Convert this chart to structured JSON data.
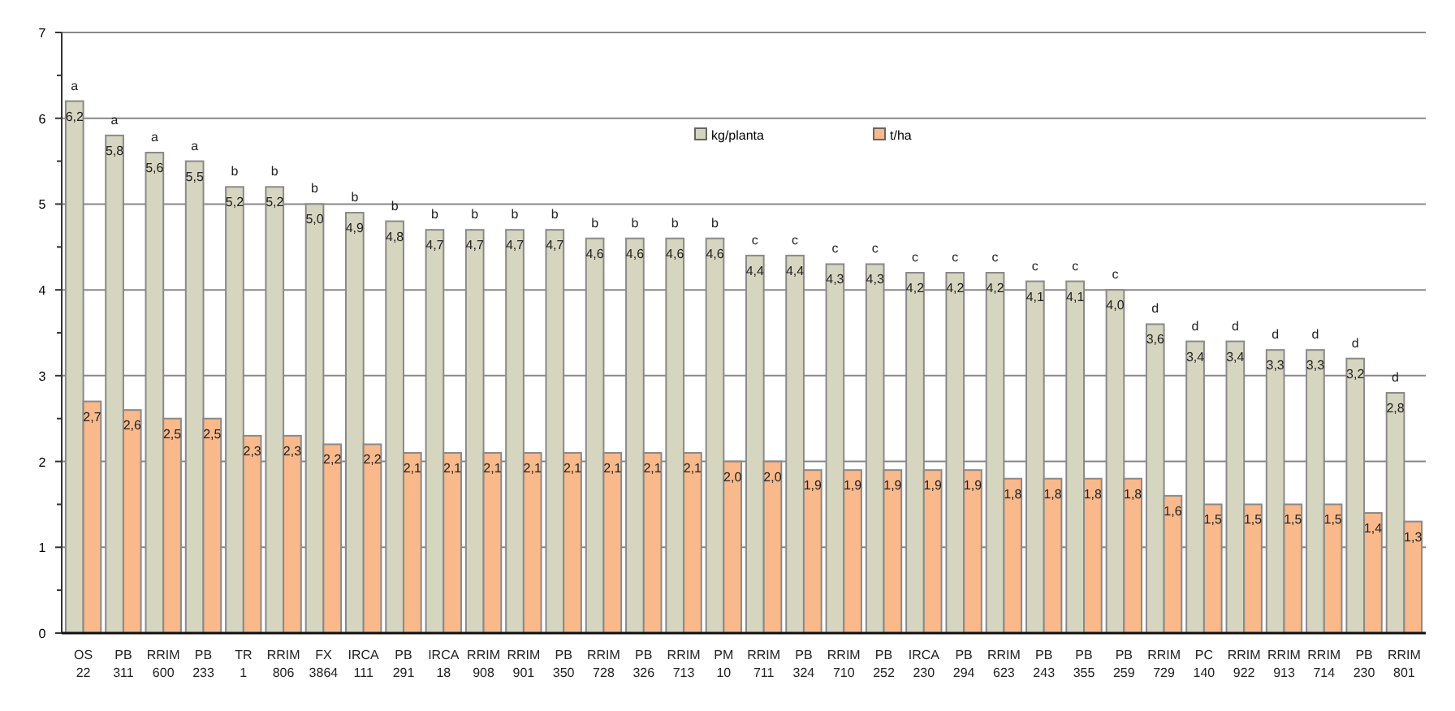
{
  "chart_data": {
    "type": "bar",
    "categories": [
      "OS 22",
      "PB 311",
      "RRIM 600",
      "PB 233",
      "TR 1",
      "RRIM 806",
      "FX 3864",
      "IRCA 111",
      "PB 291",
      "IRCA 18",
      "RRIM 908",
      "RRIM 901",
      "PB 350",
      "RRIM 728",
      "PB 326",
      "RRIM 713",
      "PM 10",
      "RRIM 711",
      "PB 324",
      "RRIM 710",
      "PB 252",
      "IRCA 230",
      "PB 294",
      "RRIM 623",
      "PB 243",
      "PB 355",
      "PB 259",
      "RRIM 729",
      "PC 140",
      "RRIM 922",
      "RRIM 913",
      "RRIM 714",
      "PB 230",
      "RRIM 801"
    ],
    "series": [
      {
        "name": "kg/planta",
        "color": "#d6d5bf",
        "values": [
          6.2,
          5.8,
          5.6,
          5.5,
          5.2,
          5.2,
          5.0,
          4.9,
          4.8,
          4.7,
          4.7,
          4.7,
          4.7,
          4.6,
          4.6,
          4.6,
          4.6,
          4.4,
          4.4,
          4.3,
          4.3,
          4.2,
          4.2,
          4.2,
          4.1,
          4.1,
          4.0,
          3.6,
          3.4,
          3.4,
          3.3,
          3.3,
          3.2,
          2.8
        ],
        "value_labels": [
          "6,2",
          "5,8",
          "5,6",
          "5,5",
          "5,2",
          "5,2",
          "5,0",
          "4,9",
          "4,8",
          "4,7",
          "4,7",
          "4,7",
          "4,7",
          "4,6",
          "4,6",
          "4,6",
          "4,6",
          "4,4",
          "4,4",
          "4,3",
          "4,3",
          "4,2",
          "4,2",
          "4,2",
          "4,1",
          "4,1",
          "4,0",
          "3,6",
          "3,4",
          "3,4",
          "3,3",
          "3,3",
          "3,2",
          "2,8"
        ]
      },
      {
        "name": "t/ha",
        "color": "#f9b98a",
        "values": [
          2.7,
          2.6,
          2.5,
          2.5,
          2.3,
          2.3,
          2.2,
          2.2,
          2.1,
          2.1,
          2.1,
          2.1,
          2.1,
          2.1,
          2.1,
          2.1,
          2.0,
          2.0,
          1.9,
          1.9,
          1.9,
          1.9,
          1.9,
          1.8,
          1.8,
          1.8,
          1.8,
          1.6,
          1.5,
          1.5,
          1.5,
          1.5,
          1.4,
          1.3
        ],
        "value_labels": [
          "2,7",
          "2,6",
          "2,5",
          "2,5",
          "2,3",
          "2,3",
          "2,2",
          "2,2",
          "2,1",
          "2,1",
          "2,1",
          "2,1",
          "2,1",
          "2,1",
          "2,1",
          "2,1",
          "2,0",
          "2,0",
          "1,9",
          "1,9",
          "1,9",
          "1,9",
          "1,9",
          "1,8",
          "1,8",
          "1,8",
          "1,8",
          "1,6",
          "1,5",
          "1,5",
          "1,5",
          "1,5",
          "1,4",
          "1,3"
        ]
      }
    ],
    "annotations": [
      {
        "text": "a",
        "x": "OS 22",
        "y": 6.2
      },
      {
        "text": "a",
        "x": "PB 311",
        "y": 5.8
      },
      {
        "text": "a",
        "x": "RRIM 600",
        "y": 5.6
      },
      {
        "text": "a",
        "x": "PB 233",
        "y": 5.5
      },
      {
        "text": "b",
        "x": "TR 1",
        "y": 5.2
      },
      {
        "text": "b",
        "x": "RRIM 806",
        "y": 5.2
      },
      {
        "text": "b",
        "x": "FX 3864",
        "y": 5.0
      },
      {
        "text": "b",
        "x": "IRCA 111",
        "y": 4.9
      },
      {
        "text": "b",
        "x": "PB 291",
        "y": 4.8
      },
      {
        "text": "b",
        "x": "IRCA 18",
        "y": 4.7
      },
      {
        "text": "b",
        "x": "RRIM 908",
        "y": 4.7
      },
      {
        "text": "b",
        "x": "RRIM 901",
        "y": 4.7
      },
      {
        "text": "b",
        "x": "PB 350",
        "y": 4.7
      },
      {
        "text": "b",
        "x": "RRIM 728",
        "y": 4.6
      },
      {
        "text": "b",
        "x": "PB 326",
        "y": 4.6
      },
      {
        "text": "b",
        "x": "RRIM 713",
        "y": 4.6
      },
      {
        "text": "b",
        "x": "PM 10",
        "y": 4.6
      },
      {
        "text": "c",
        "x": "RRIM 711",
        "y": 4.4
      },
      {
        "text": "c",
        "x": "PB 324",
        "y": 4.4
      },
      {
        "text": "c",
        "x": "RRIM 710",
        "y": 4.3
      },
      {
        "text": "c",
        "x": "PB 252",
        "y": 4.3
      },
      {
        "text": "c",
        "x": "IRCA 230",
        "y": 4.2
      },
      {
        "text": "c",
        "x": "PB 294",
        "y": 4.2
      },
      {
        "text": "c",
        "x": "RRIM 623",
        "y": 4.2
      },
      {
        "text": "c",
        "x": "PB 243",
        "y": 4.1
      },
      {
        "text": "c",
        "x": "PB 355",
        "y": 4.1
      },
      {
        "text": "c",
        "x": "PB 259",
        "y": 4.0
      },
      {
        "text": "d",
        "x": "RRIM 729",
        "y": 3.6
      },
      {
        "text": "d",
        "x": "PC 140",
        "y": 3.4
      },
      {
        "text": "d",
        "x": "RRIM 922",
        "y": 3.4
      },
      {
        "text": "d",
        "x": "RRIM 913",
        "y": 3.3
      },
      {
        "text": "d",
        "x": "RRIM 714",
        "y": 3.3
      },
      {
        "text": "d",
        "x": "PB 230",
        "y": 3.2
      },
      {
        "text": "d",
        "x": "RRIM 801",
        "y": 2.8
      }
    ],
    "ylim": [
      0,
      7
    ],
    "yticks": [
      0,
      1,
      2,
      3,
      4,
      5,
      6,
      7
    ],
    "grid": "y",
    "legend": "top"
  }
}
